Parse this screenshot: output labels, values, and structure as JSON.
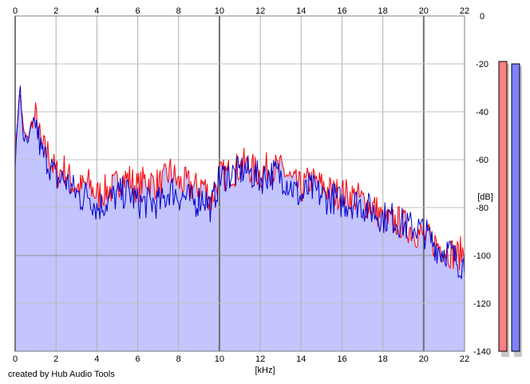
{
  "footer": {
    "credit": "created by Hub Audio Tools"
  },
  "chart_data": {
    "type": "line",
    "title": "",
    "xlabel": "[kHz]",
    "ylabel": "[dB]",
    "xlim": [
      0,
      22
    ],
    "ylim": [
      -140,
      0
    ],
    "x_ticks": [
      0,
      2,
      4,
      6,
      8,
      10,
      12,
      14,
      16,
      18,
      20,
      22
    ],
    "y_ticks": [
      0,
      -20,
      -40,
      -60,
      -80,
      -100,
      -120,
      -140
    ],
    "grid": true,
    "fill_color": "#c4c4ff",
    "series": [
      {
        "color": "#ff0000",
        "x": [
          0.0,
          0.15,
          0.25,
          0.4,
          0.6,
          0.8,
          1.0,
          1.3,
          1.6,
          2.0,
          2.4,
          2.8,
          3.2,
          3.6,
          4.0,
          4.4,
          4.8,
          5.2,
          5.6,
          6.0,
          6.4,
          6.8,
          7.2,
          7.6,
          8.0,
          8.4,
          8.8,
          9.2,
          9.6,
          10.0,
          10.4,
          10.8,
          11.2,
          11.6,
          12.0,
          12.4,
          12.8,
          13.2,
          13.6,
          14.0,
          14.4,
          14.8,
          15.2,
          15.6,
          16.0,
          16.4,
          16.8,
          17.2,
          17.6,
          18.0,
          18.4,
          18.8,
          19.2,
          19.6,
          20.0,
          20.4,
          20.8,
          21.2,
          21.6,
          22.0
        ],
        "y": [
          -60,
          -38,
          -33,
          -48,
          -52,
          -45,
          -42,
          -55,
          -57,
          -66,
          -64,
          -70,
          -72,
          -70,
          -75,
          -73,
          -72,
          -68,
          -68,
          -72,
          -68,
          -70,
          -70,
          -65,
          -70,
          -70,
          -72,
          -70,
          -77,
          -67,
          -66,
          -64,
          -62,
          -64,
          -66,
          -63,
          -64,
          -65,
          -70,
          -72,
          -69,
          -70,
          -72,
          -74,
          -74,
          -75,
          -76,
          -78,
          -80,
          -85,
          -86,
          -86,
          -88,
          -90,
          -92,
          -94,
          -96,
          -98,
          -100,
          -98
        ]
      },
      {
        "color": "#0000cc",
        "x": [
          0.0,
          0.15,
          0.25,
          0.4,
          0.6,
          0.8,
          1.0,
          1.3,
          1.6,
          2.0,
          2.4,
          2.8,
          3.2,
          3.6,
          4.0,
          4.4,
          4.8,
          5.2,
          5.6,
          6.0,
          6.4,
          6.8,
          7.2,
          7.6,
          8.0,
          8.4,
          8.8,
          9.2,
          9.6,
          10.0,
          10.4,
          10.8,
          11.2,
          11.6,
          12.0,
          12.4,
          12.8,
          13.2,
          13.6,
          14.0,
          14.4,
          14.8,
          15.2,
          15.6,
          16.0,
          16.4,
          16.8,
          17.2,
          17.6,
          18.0,
          18.4,
          18.8,
          19.2,
          19.6,
          20.0,
          20.4,
          20.8,
          21.2,
          21.6,
          22.0
        ],
        "y": [
          -62,
          -40,
          -31,
          -50,
          -54,
          -47,
          -44,
          -58,
          -60,
          -68,
          -68,
          -72,
          -76,
          -74,
          -80,
          -78,
          -76,
          -74,
          -74,
          -78,
          -78,
          -78,
          -78,
          -72,
          -75,
          -76,
          -78,
          -75,
          -80,
          -68,
          -66,
          -66,
          -64,
          -66,
          -68,
          -66,
          -66,
          -68,
          -72,
          -76,
          -72,
          -74,
          -76,
          -76,
          -78,
          -78,
          -78,
          -80,
          -82,
          -84,
          -84,
          -86,
          -88,
          -88,
          -90,
          -94,
          -98,
          -98,
          -102,
          -104
        ]
      }
    ],
    "level_meters": [
      {
        "color": "#ff8080",
        "level_db": -19
      },
      {
        "color": "#8080ff",
        "level_db": -20
      }
    ]
  }
}
